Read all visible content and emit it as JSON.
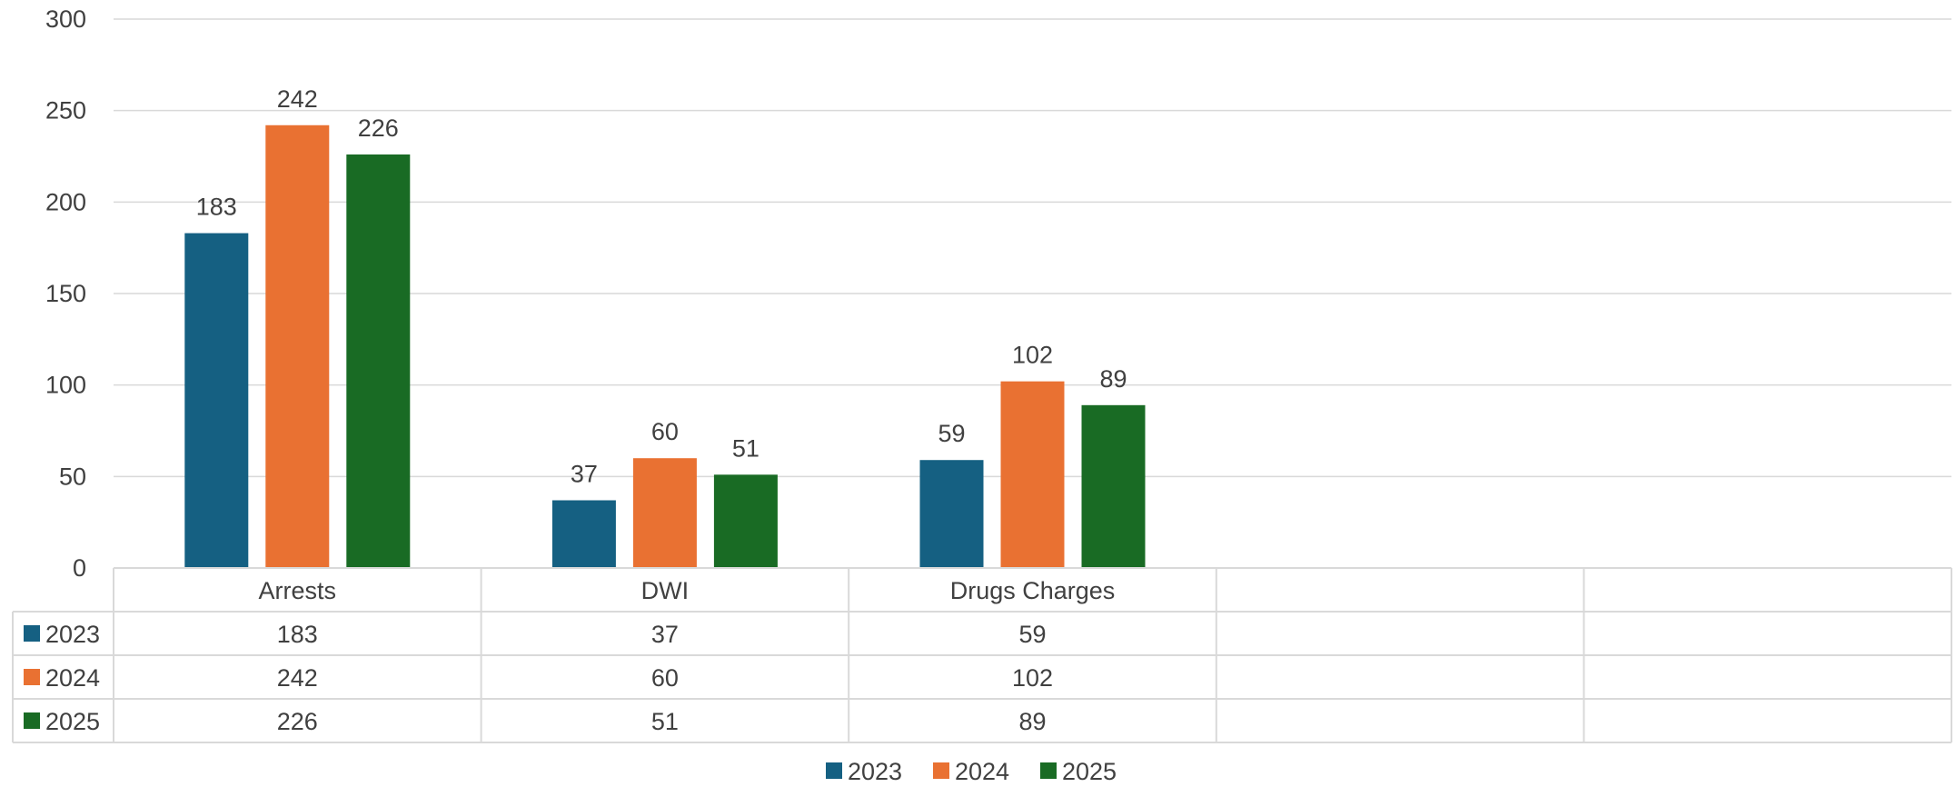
{
  "chart_data": {
    "type": "bar",
    "categories": [
      "Arrests",
      "DWI",
      "Drugs Charges",
      "",
      ""
    ],
    "series": [
      {
        "name": "2023",
        "color": "#156082",
        "values": [
          183,
          37,
          59,
          null,
          null
        ]
      },
      {
        "name": "2024",
        "color": "#E97132",
        "values": [
          242,
          60,
          102,
          null,
          null
        ]
      },
      {
        "name": "2025",
        "color": "#196B24",
        "values": [
          226,
          51,
          89,
          null,
          null
        ]
      }
    ],
    "ylim": [
      0,
      300
    ],
    "yticks": [
      0,
      50,
      100,
      150,
      200,
      250,
      300
    ],
    "grid": true,
    "data_labels": true,
    "data_table": true,
    "legend_position": "bottom"
  }
}
